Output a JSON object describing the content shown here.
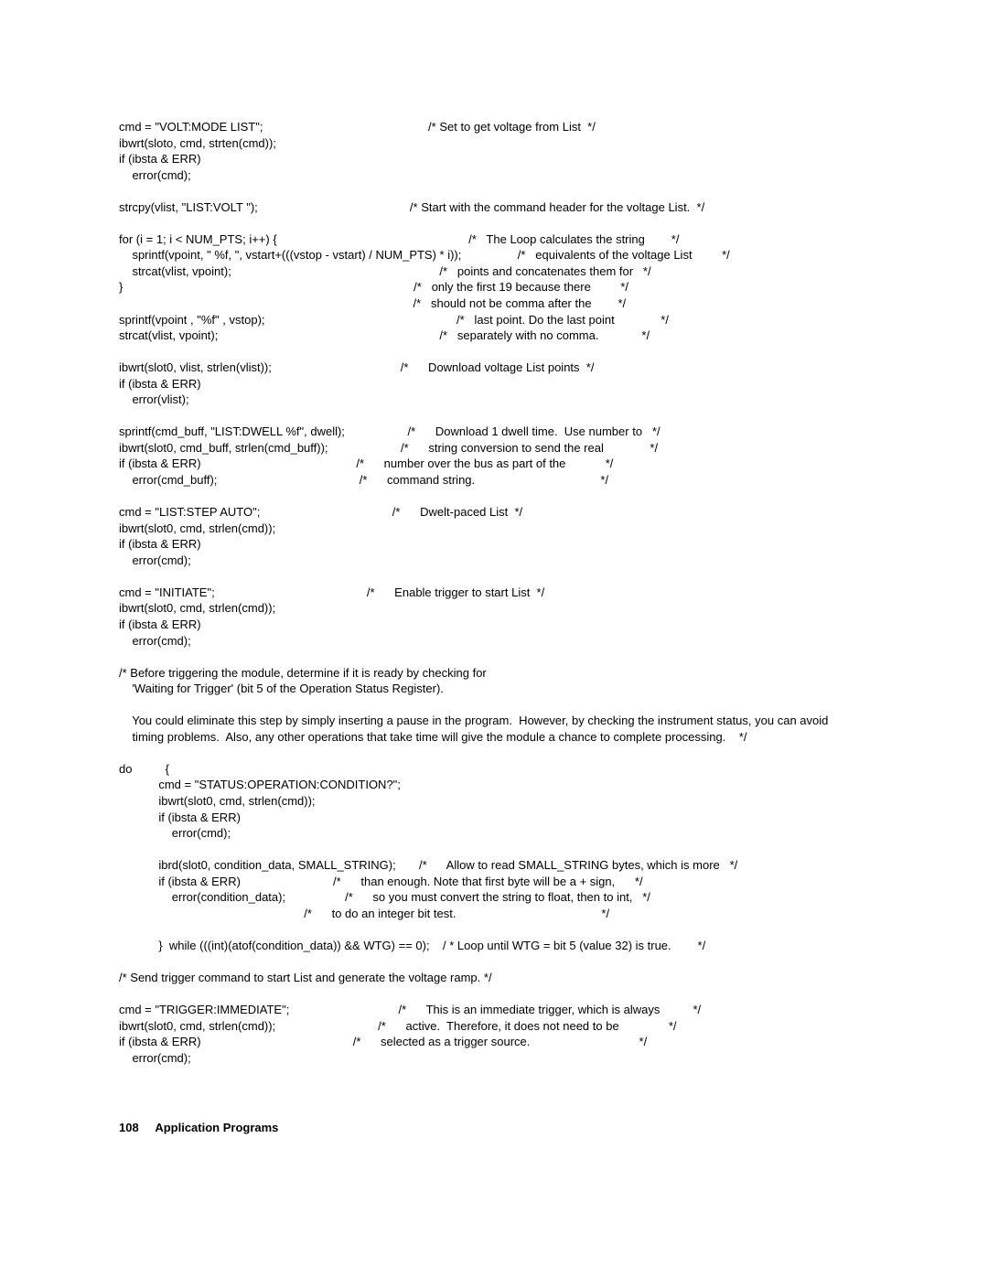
{
  "code": "cmd = \"VOLT:MODE LIST\";                                                  /* Set to get voltage from List  */\nibwrt(sloto, cmd, strten(cmd));\nif (ibsta & ERR)\n    error(cmd);\n\nstrcpy(vlist, \"LIST:VOLT \");                                              /* Start with the command header for the voltage List.  */\n\nfor (i = 1; i < NUM_PTS; i++) {                                                          /*   The Loop calculates the string        */\n    sprintf(vpoint, \" %f, \", vstart+(((vstop - vstart) / NUM_PTS) * i));                 /*   equivalents of the voltage List         */\n    strcat(vlist, vpoint);                                                               /*   points and concatenates them for   */\n}                                                                                        /*   only the first 19 because there         */\n                                                                                         /*   should not be comma after the        */\nsprintf(vpoint , \"%f\" , vstop);                                                          /*   last point. Do the last point              */\nstrcat(vlist, vpoint);                                                                   /*   separately with no comma.             */\n\nibwrt(slot0, vlist, strlen(vlist));                                       /*      Download voltage List points  */\nif (ibsta & ERR)\n    error(vlist);\n\nsprintf(cmd_buff, \"LIST:DWELL %f\", dwell);                   /*      Download 1 dwell time.  Use number to   */\nibwrt(slot0, cmd_buff, strlen(cmd_buff));                      /*      string conversion to send the real              */\nif (ibsta & ERR)                                               /*      number over the bus as part of the            */\n    error(cmd_buff);                                           /*      command string.                                      */\n\ncmd = \"LIST:STEP AUTO\";                                        /*      Dwelt-paced List  */\nibwrt(slot0, cmd, strlen(cmd));\nif (ibsta & ERR)\n    error(cmd);\n\ncmd = \"INITIATE\";                                              /*      Enable trigger to start List  */\nibwrt(slot0, cmd, strlen(cmd));\nif (ibsta & ERR)\n    error(cmd);\n\n/* Before triggering the module, determine if it is ready by checking for\n    'Waiting for Trigger' (bit 5 of the Operation Status Register).\n\n    You could eliminate this step by simply inserting a pause in the program.  However, by checking the instrument status, you can avoid\n    timing problems.  Also, any other operations that take time will give the module a chance to complete processing.    */\n\ndo          {\n            cmd = \"STATUS:OPERATION:CONDITION?\";\n            ibwrt(slot0, cmd, strlen(cmd));\n            if (ibsta & ERR)\n                error(cmd);\n\n            ibrd(slot0, condition_data, SMALL_STRING);       /*      Allow to read SMALL_STRING bytes, which is more   */\n            if (ibsta & ERR)                            /*      than enough. Note that first byte will be a + sign,      */\n                error(condition_data);                  /*      so you must convert the string to float, then to int,   */\n                                                        /*      to do an integer bit test.                                            */\n\n            }  while (((int)(atof(condition_data)) && WTG) == 0);    / * Loop until WTG = bit 5 (value 32) is true.        */\n\n/* Send trigger command to start List and generate the voltage ramp. */\n\ncmd = \"TRIGGER:IMMEDIATE\";                                 /*      This is an immediate trigger, which is always          */\nibwrt(slot0, cmd, strlen(cmd));                               /*      active.  Therefore, it does not need to be               */\nif (ibsta & ERR)                                              /*      selected as a trigger source.                                 */\n    error(cmd);",
  "footer": {
    "page_number": "108",
    "section": "Application Programs"
  }
}
